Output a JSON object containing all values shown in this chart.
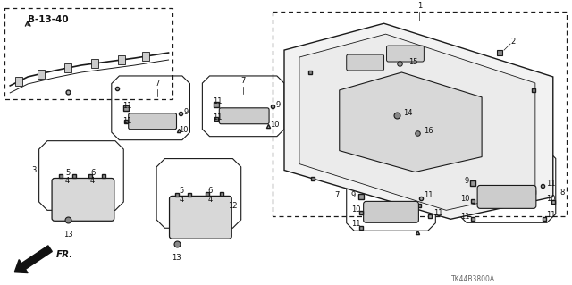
{
  "bg_color": "#ffffff",
  "line_color": "#1a1a1a",
  "text_color": "#111111",
  "fig_width": 6.4,
  "fig_height": 3.19,
  "dpi": 100,
  "part_number": "TK44B3800A",
  "page_ref": "B-13-40"
}
